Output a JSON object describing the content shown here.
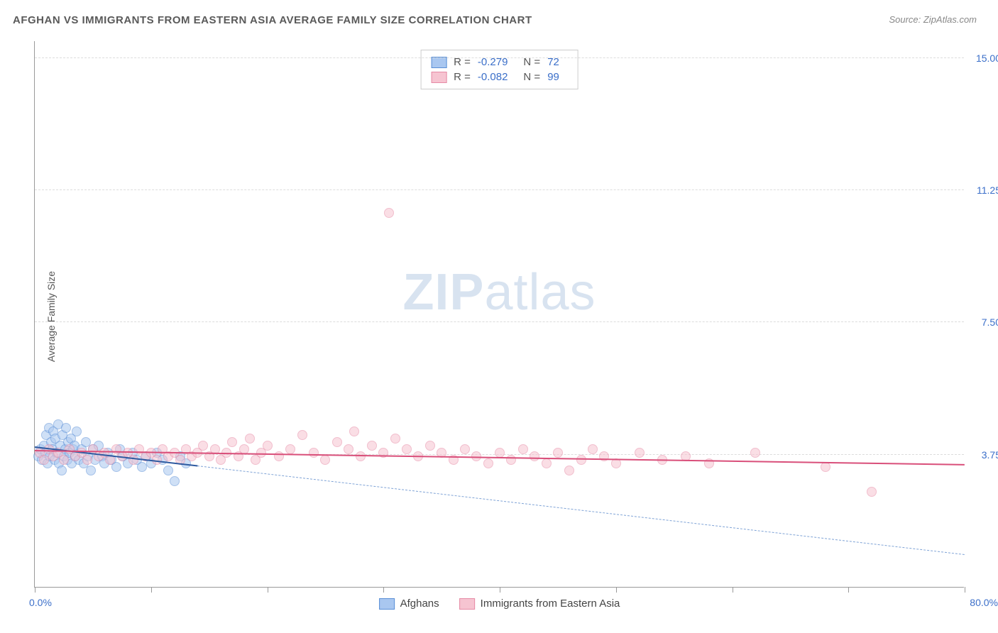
{
  "title": "AFGHAN VS IMMIGRANTS FROM EASTERN ASIA AVERAGE FAMILY SIZE CORRELATION CHART",
  "source": "Source: ZipAtlas.com",
  "ylabel": "Average Family Size",
  "watermark_a": "ZIP",
  "watermark_b": "atlas",
  "chart": {
    "type": "scatter",
    "background_color": "#ffffff",
    "grid_color": "#dcdcdc",
    "axis_color": "#999999",
    "tick_label_color": "#3b6fc9",
    "xlim": [
      0,
      80
    ],
    "ylim": [
      0,
      15.5
    ],
    "yticks": [
      3.75,
      7.5,
      11.25,
      15.0
    ],
    "ytick_labels": [
      "3.75",
      "7.50",
      "11.25",
      "15.00"
    ],
    "xtick_positions": [
      0,
      10,
      20,
      30,
      40,
      50,
      60,
      70,
      80
    ],
    "xlabel_start": "0.0%",
    "xlabel_end": "80.0%",
    "point_radius": 7,
    "point_opacity": 0.55,
    "series": [
      {
        "name": "Afghans",
        "fill": "#a9c7f0",
        "stroke": "#5a8fd6",
        "trend": {
          "y_at_xmin": 3.95,
          "y_at_xmax": 0.9,
          "style": "solid_then_dashed",
          "solid_until_x": 14,
          "color_solid": "#2e5aa0",
          "color_dash": "#7fa3d6",
          "width": 2
        },
        "R": "-0.279",
        "N": "72",
        "points": [
          [
            0.3,
            3.7
          ],
          [
            0.5,
            3.9
          ],
          [
            0.6,
            3.6
          ],
          [
            0.8,
            4.0
          ],
          [
            0.9,
            3.8
          ],
          [
            1.0,
            4.3
          ],
          [
            1.1,
            3.5
          ],
          [
            1.2,
            4.5
          ],
          [
            1.3,
            3.7
          ],
          [
            1.4,
            4.1
          ],
          [
            1.5,
            3.9
          ],
          [
            1.6,
            4.4
          ],
          [
            1.7,
            3.6
          ],
          [
            1.8,
            4.2
          ],
          [
            1.9,
            3.8
          ],
          [
            2.0,
            4.6
          ],
          [
            2.1,
            3.5
          ],
          [
            2.2,
            4.0
          ],
          [
            2.3,
            3.3
          ],
          [
            2.4,
            4.3
          ],
          [
            2.5,
            3.7
          ],
          [
            2.6,
            3.9
          ],
          [
            2.7,
            4.5
          ],
          [
            2.8,
            3.6
          ],
          [
            2.9,
            4.1
          ],
          [
            3.0,
            3.8
          ],
          [
            3.1,
            4.2
          ],
          [
            3.2,
            3.5
          ],
          [
            3.3,
            3.9
          ],
          [
            3.4,
            4.0
          ],
          [
            3.5,
            3.7
          ],
          [
            3.6,
            4.4
          ],
          [
            3.8,
            3.6
          ],
          [
            4.0,
            3.9
          ],
          [
            4.2,
            3.5
          ],
          [
            4.4,
            4.1
          ],
          [
            4.6,
            3.7
          ],
          [
            4.8,
            3.3
          ],
          [
            5.0,
            3.9
          ],
          [
            5.2,
            3.6
          ],
          [
            5.5,
            4.0
          ],
          [
            5.8,
            3.7
          ],
          [
            6.0,
            3.5
          ],
          [
            6.3,
            3.8
          ],
          [
            6.6,
            3.6
          ],
          [
            7.0,
            3.4
          ],
          [
            7.3,
            3.9
          ],
          [
            7.6,
            3.7
          ],
          [
            8.0,
            3.5
          ],
          [
            8.4,
            3.8
          ],
          [
            8.8,
            3.6
          ],
          [
            9.2,
            3.4
          ],
          [
            9.6,
            3.7
          ],
          [
            10.0,
            3.5
          ],
          [
            10.5,
            3.8
          ],
          [
            11.0,
            3.6
          ],
          [
            11.5,
            3.3
          ],
          [
            12.0,
            3.0
          ],
          [
            12.5,
            3.7
          ],
          [
            13.0,
            3.5
          ]
        ]
      },
      {
        "name": "Immigrants from Eastern Asia",
        "fill": "#f6c4d1",
        "stroke": "#e68aa5",
        "trend": {
          "y_at_xmin": 3.85,
          "y_at_xmax": 3.45,
          "style": "solid",
          "color_solid": "#d94f7a",
          "width": 2.5
        },
        "R": "-0.082",
        "N": "99",
        "points": [
          [
            0.4,
            3.8
          ],
          [
            0.8,
            3.6
          ],
          [
            1.2,
            3.9
          ],
          [
            1.6,
            3.7
          ],
          [
            2.0,
            3.8
          ],
          [
            2.5,
            3.6
          ],
          [
            3.0,
            3.9
          ],
          [
            3.5,
            3.7
          ],
          [
            4.0,
            3.8
          ],
          [
            4.5,
            3.6
          ],
          [
            5.0,
            3.9
          ],
          [
            5.5,
            3.7
          ],
          [
            6.0,
            3.8
          ],
          [
            6.5,
            3.6
          ],
          [
            7.0,
            3.9
          ],
          [
            7.5,
            3.7
          ],
          [
            8.0,
            3.8
          ],
          [
            8.5,
            3.6
          ],
          [
            9.0,
            3.9
          ],
          [
            9.5,
            3.7
          ],
          [
            10.0,
            3.8
          ],
          [
            10.5,
            3.6
          ],
          [
            11.0,
            3.9
          ],
          [
            11.5,
            3.7
          ],
          [
            12.0,
            3.8
          ],
          [
            12.5,
            3.6
          ],
          [
            13.0,
            3.9
          ],
          [
            13.5,
            3.7
          ],
          [
            14.0,
            3.8
          ],
          [
            14.5,
            4.0
          ],
          [
            15.0,
            3.7
          ],
          [
            15.5,
            3.9
          ],
          [
            16.0,
            3.6
          ],
          [
            16.5,
            3.8
          ],
          [
            17.0,
            4.1
          ],
          [
            17.5,
            3.7
          ],
          [
            18.0,
            3.9
          ],
          [
            18.5,
            4.2
          ],
          [
            19.0,
            3.6
          ],
          [
            19.5,
            3.8
          ],
          [
            20.0,
            4.0
          ],
          [
            21.0,
            3.7
          ],
          [
            22.0,
            3.9
          ],
          [
            23.0,
            4.3
          ],
          [
            24.0,
            3.8
          ],
          [
            25.0,
            3.6
          ],
          [
            26.0,
            4.1
          ],
          [
            27.0,
            3.9
          ],
          [
            27.5,
            4.4
          ],
          [
            28.0,
            3.7
          ],
          [
            29.0,
            4.0
          ],
          [
            30.0,
            3.8
          ],
          [
            30.5,
            10.6
          ],
          [
            31.0,
            4.2
          ],
          [
            32.0,
            3.9
          ],
          [
            33.0,
            3.7
          ],
          [
            34.0,
            4.0
          ],
          [
            35.0,
            3.8
          ],
          [
            36.0,
            3.6
          ],
          [
            37.0,
            3.9
          ],
          [
            38.0,
            3.7
          ],
          [
            39.0,
            3.5
          ],
          [
            40.0,
            3.8
          ],
          [
            41.0,
            3.6
          ],
          [
            42.0,
            3.9
          ],
          [
            43.0,
            3.7
          ],
          [
            44.0,
            3.5
          ],
          [
            45.0,
            3.8
          ],
          [
            46.0,
            3.3
          ],
          [
            47.0,
            3.6
          ],
          [
            48.0,
            3.9
          ],
          [
            49.0,
            3.7
          ],
          [
            50.0,
            3.5
          ],
          [
            52.0,
            3.8
          ],
          [
            54.0,
            3.6
          ],
          [
            56.0,
            3.7
          ],
          [
            58.0,
            3.5
          ],
          [
            62.0,
            3.8
          ],
          [
            68.0,
            3.4
          ],
          [
            72.0,
            2.7
          ]
        ]
      }
    ],
    "legend_top": {
      "R_label": "R =",
      "N_label": "N ="
    },
    "legend_bottom": [
      {
        "label": "Afghans",
        "swatch_fill": "#a9c7f0",
        "swatch_stroke": "#5a8fd6"
      },
      {
        "label": "Immigrants from Eastern Asia",
        "swatch_fill": "#f6c4d1",
        "swatch_stroke": "#e68aa5"
      }
    ]
  }
}
